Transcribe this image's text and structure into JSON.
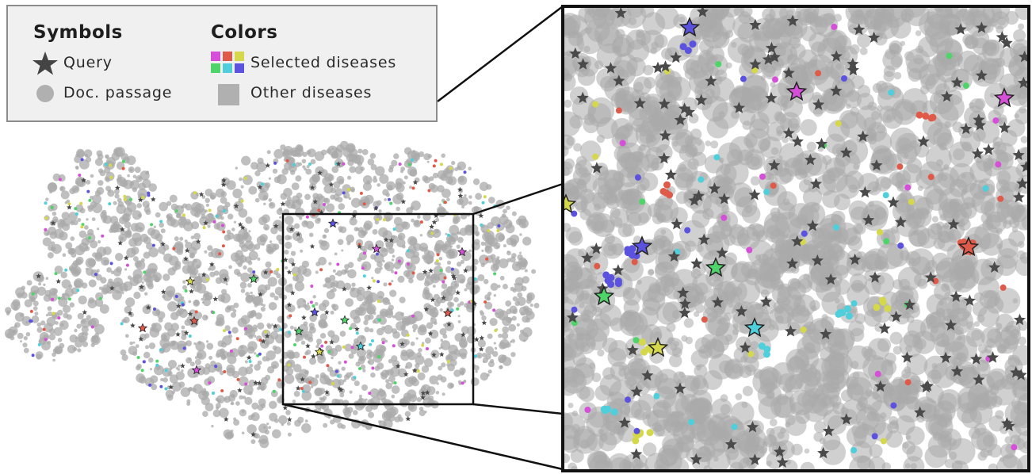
{
  "legend": {
    "symbols_title": "Symbols",
    "colors_title": "Colors",
    "query_label": "Query",
    "passage_label": "Doc. passage",
    "selected_label": "Selected diseases",
    "other_label": "Other diseases"
  },
  "colors": {
    "background": "#ffffff",
    "passage_gray": "#a9a9a9",
    "query_dark": "#4a4a4a",
    "magenta": "#d54fd8",
    "red": "#e05a4a",
    "yellow": "#d4d84a",
    "green": "#4fd46a",
    "cyan": "#4fcfdb",
    "blue": "#5b52df",
    "legend_bg": "#f0f0f0",
    "legend_border": "#8c8c8c"
  }
}
